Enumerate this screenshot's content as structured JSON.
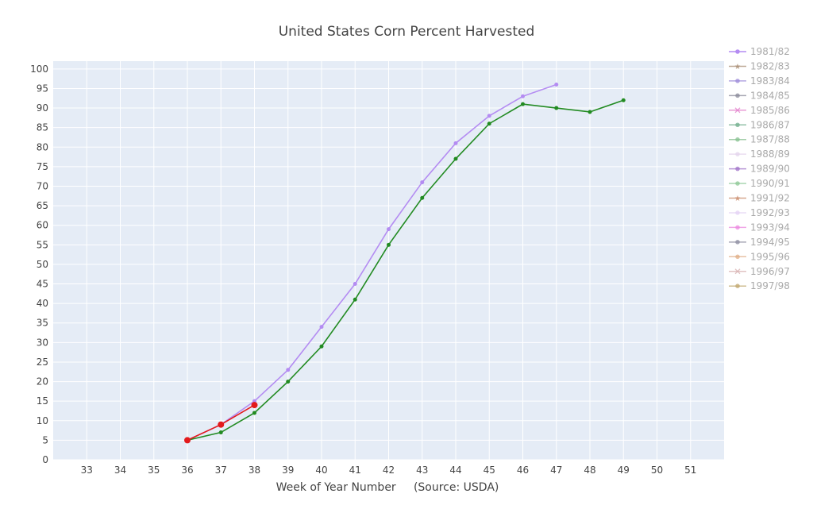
{
  "chart_data": {
    "type": "line",
    "title": "United States Corn Percent Harvested",
    "xlabel": "Week of Year Number     (Source: USDA)",
    "ylabel": "",
    "xlim": [
      32,
      52
    ],
    "ylim": [
      0,
      102
    ],
    "x_ticks": [
      33,
      34,
      35,
      36,
      37,
      38,
      39,
      40,
      41,
      42,
      43,
      44,
      45,
      46,
      47,
      48,
      49,
      50,
      51
    ],
    "y_ticks": [
      0,
      5,
      10,
      15,
      20,
      25,
      30,
      35,
      40,
      45,
      50,
      55,
      60,
      65,
      70,
      75,
      80,
      85,
      90,
      95,
      100
    ],
    "grid": true,
    "legend_position": "right",
    "series": [
      {
        "name": "1981/82",
        "color": "#b48cf2",
        "marker": "circle",
        "visible": true,
        "x": [
          36,
          37,
          38,
          39,
          40,
          41,
          42,
          43,
          44,
          45,
          46,
          47
        ],
        "y": [
          5,
          9,
          15,
          23,
          34,
          45,
          59,
          71,
          81,
          88,
          93,
          96
        ]
      },
      {
        "name": "1982/83",
        "color": "#a88c72",
        "marker": "star",
        "visible": false
      },
      {
        "name": "1983/84",
        "color": "#9c8ad8",
        "marker": "circle",
        "visible": false
      },
      {
        "name": "1984/85",
        "color": "#8a8a9a",
        "marker": "circle",
        "visible": false
      },
      {
        "name": "1985/86",
        "color": "#e27ac9",
        "marker": "x",
        "visible": false
      },
      {
        "name": "1986/87",
        "color": "#6fae8b",
        "marker": "circle",
        "visible": false
      },
      {
        "name": "1987/88",
        "color": "#86c08f",
        "marker": "circle",
        "visible": false
      },
      {
        "name": "1988/89",
        "color": "#e3d4ec",
        "marker": "circle",
        "visible": false
      },
      {
        "name": "1989/90",
        "color": "#a072c8",
        "marker": "circle",
        "visible": false
      },
      {
        "name": "1990/91",
        "color": "#8dc896",
        "marker": "circle",
        "visible": false
      },
      {
        "name": "1991/92",
        "color": "#c98a6a",
        "marker": "star",
        "visible": false
      },
      {
        "name": "1992/93",
        "color": "#e4d2f4",
        "marker": "circle",
        "visible": false
      },
      {
        "name": "1993/94",
        "color": "#ec8ae0",
        "marker": "circle",
        "visible": false
      },
      {
        "name": "1994/95",
        "color": "#8c8ca0",
        "marker": "circle",
        "visible": false
      },
      {
        "name": "1995/96",
        "color": "#e0ad86",
        "marker": "circle",
        "visible": false
      },
      {
        "name": "1996/97",
        "color": "#d8b0b0",
        "marker": "x",
        "visible": false
      },
      {
        "name": "1997/98",
        "color": "#c0a66c",
        "marker": "circle",
        "visible": false
      },
      {
        "name": "",
        "color": "#228b22",
        "marker": "circle",
        "visible": true,
        "in_legend": false,
        "x": [
          36,
          37,
          38,
          39,
          40,
          41,
          42,
          43,
          44,
          45,
          46,
          47,
          48,
          49
        ],
        "y": [
          5,
          7,
          12,
          20,
          29,
          41,
          55,
          67,
          77,
          86,
          91,
          90,
          89,
          92
        ]
      },
      {
        "name": "",
        "color": "#e31a1c",
        "marker": "circle",
        "visible": true,
        "in_legend": false,
        "x": [
          36,
          37,
          38
        ],
        "y": [
          5,
          9,
          14
        ]
      }
    ]
  }
}
